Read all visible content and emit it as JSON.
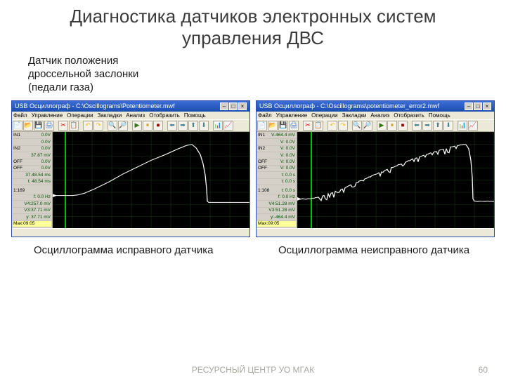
{
  "title": "Диагностика датчиков электронных систем управления ДВС",
  "subtitle_lines": [
    "Датчик положения",
    "дроссельной заслонки",
    "(педали газа)"
  ],
  "footer": "РЕСУРСНЫЙ ЦЕНТР УО МГАК",
  "page_number": "60",
  "menu_items": [
    "Файл",
    "Управление",
    "Операции",
    "Закладки",
    "Анализ",
    "Отобразить",
    "Помощь"
  ],
  "toolbar_icons": [
    "📄",
    "📂",
    "💾",
    "🖨",
    "",
    "✂",
    "📋",
    "",
    "↶",
    "↷",
    "",
    "🔍",
    "🔎",
    "",
    "▶",
    "⏸",
    "⏹",
    "",
    "⬅",
    "➡",
    "⬆",
    "⬇",
    "",
    "📊",
    "📈"
  ],
  "toolbar_colors": [
    "#6aa84f",
    "#6aa84f",
    "#3c78d8",
    "#3c78d8",
    "#999",
    "#cc0000",
    "#cc0000",
    "#999",
    "#f1c232",
    "#f1c232",
    "#999",
    "#3c78d8",
    "#3c78d8",
    "#999",
    "#38761d",
    "#bf9000",
    "#990000",
    "#999",
    "#45818e",
    "#45818e",
    "#45818e",
    "#45818e",
    "#999",
    "#674ea7",
    "#674ea7"
  ],
  "left": {
    "win_title": "USB Осциллограф - C:\\Oscillograms\\Potentiometer.mwf",
    "caption": "Осциллограмма исправного датчика",
    "side_rows": [
      {
        "l": "IN1",
        "v": "0.0V"
      },
      {
        "l": "",
        "v": "0.0V"
      },
      {
        "l": "IN2",
        "v": "0.0V"
      },
      {
        "l": "",
        "v": "37.87 mV"
      },
      {
        "l": "OFF",
        "v": "0.0V"
      },
      {
        "l": "OFF",
        "v": "0.0V"
      },
      {
        "l": "",
        "v": "37.48.54 ms"
      },
      {
        "l": "",
        "v": "t: 48.54 ms"
      }
    ],
    "side_rows2": [
      {
        "l": "1:169",
        "v": ""
      },
      {
        "l": "",
        "v": "f: 0.0 Hz"
      },
      {
        "l": "",
        "v": "V4:257.0 mV"
      },
      {
        "l": "",
        "v": "V3:37.71 mV"
      },
      {
        "l": "",
        "v": "y: 37.71 mV"
      }
    ],
    "bottom_tag": "Мах:09:05",
    "chart": {
      "grid_color": "#1a3a1a",
      "cursor_color": "#00ff00",
      "trace_color": "#f8f8f8",
      "trace_width": 1.3,
      "xlim": [
        0,
        280
      ],
      "ylim": [
        0,
        170
      ],
      "cursor_x": 18,
      "trace": [
        [
          0,
          112
        ],
        [
          20,
          112
        ],
        [
          28,
          112
        ],
        [
          35,
          111
        ],
        [
          45,
          108
        ],
        [
          60,
          100
        ],
        [
          80,
          88
        ],
        [
          100,
          74
        ],
        [
          120,
          62
        ],
        [
          140,
          50
        ],
        [
          160,
          40
        ],
        [
          178,
          30
        ],
        [
          190,
          24
        ],
        [
          198,
          22
        ],
        [
          204,
          28
        ],
        [
          210,
          40
        ],
        [
          214,
          56
        ],
        [
          217,
          76
        ],
        [
          219,
          100
        ],
        [
          220,
          122
        ],
        [
          222,
          124
        ],
        [
          280,
          124
        ]
      ],
      "noise": 0
    }
  },
  "right": {
    "win_title": "USB Осциллограф - C:\\Oscillograms\\potentiometer_error2.mwf",
    "caption": "Осциллограмма неисправного датчика",
    "side_rows": [
      {
        "l": "IN1",
        "v": "V-464.4 mV"
      },
      {
        "l": "",
        "v": "V: 0.0V"
      },
      {
        "l": "IN2",
        "v": "V: 0.0V"
      },
      {
        "l": "",
        "v": "V: 0.0V"
      },
      {
        "l": "OFF",
        "v": "V: 0.0V"
      },
      {
        "l": "OFF",
        "v": "V: 0.0V"
      },
      {
        "l": "",
        "v": "t: 0.0 s"
      },
      {
        "l": "",
        "v": "t: 0.0 s"
      }
    ],
    "side_rows2": [
      {
        "l": "1:108",
        "v": "t: 0.0 s"
      },
      {
        "l": "",
        "v": "f: 0.0 Hz"
      },
      {
        "l": "",
        "v": "V4:51.28 mV"
      },
      {
        "l": "",
        "v": "V3:51.28 mV"
      },
      {
        "l": "",
        "v": "y:-464.4 mV"
      }
    ],
    "bottom_tag": "Мах:09:05",
    "chart": {
      "grid_color": "#1a3a1a",
      "cursor_color": "#00ff00",
      "trace_color": "#f8f8f8",
      "trace_width": 1.3,
      "xlim": [
        0,
        280
      ],
      "ylim": [
        0,
        170
      ],
      "cursor_x": 20,
      "trace": [
        [
          0,
          118
        ],
        [
          15,
          118
        ],
        [
          22,
          117
        ],
        [
          30,
          115
        ],
        [
          42,
          110
        ],
        [
          56,
          104
        ],
        [
          72,
          96
        ],
        [
          90,
          86
        ],
        [
          108,
          76
        ],
        [
          128,
          66
        ],
        [
          148,
          56
        ],
        [
          168,
          46
        ],
        [
          188,
          38
        ],
        [
          206,
          31
        ],
        [
          220,
          26
        ],
        [
          232,
          23
        ],
        [
          240,
          22
        ],
        [
          244,
          30
        ],
        [
          247,
          50
        ],
        [
          249,
          80
        ],
        [
          250,
          118
        ],
        [
          252,
          122
        ],
        [
          280,
          122
        ]
      ],
      "noise": 10
    }
  }
}
